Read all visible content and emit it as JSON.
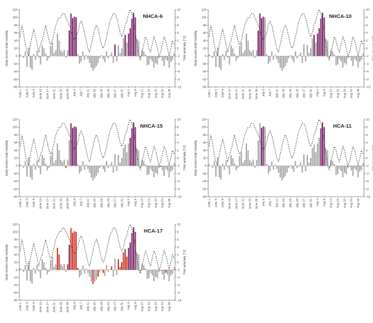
{
  "colors": {
    "grey": "#a9a9a9",
    "purple": "#7a2a6b",
    "red": "#d33a2c",
    "dash": "#444444",
    "axis": "#555555"
  },
  "y_left_label": "Daily excess total mortality",
  "y_right_label": "Tmin anomaly [°C]",
  "y_left_ticks": [
    "-80",
    "-60",
    "-40",
    "-20",
    "0",
    "20",
    "40",
    "60",
    "80",
    "100",
    "120"
  ],
  "y_right_ticks": [
    "-10",
    "-8",
    "-6",
    "-4",
    "-2",
    "0",
    "2",
    "4",
    "6",
    "8",
    "10"
  ],
  "x_tick_labels": [
    "June 1",
    "June 5",
    "June 9",
    "June 13",
    "June 17",
    "June 21",
    "June 25",
    "June 29",
    "July 3",
    "July 7",
    "July 11",
    "July 15",
    "July 19",
    "July 23",
    "July 27",
    "July 31",
    "Aug 4",
    "Aug 8",
    "Aug 12",
    "Aug 16",
    "Aug 20",
    "Aug 24",
    "Aug 28"
  ],
  "chart_data": {
    "type": "bar",
    "description_of_axes": {
      "x": "day (June 1 – Aug 31)",
      "y_left": "Daily excess total mortality",
      "y_right": "Tmin anomaly [°C]"
    },
    "ylim_left": [
      -80,
      120
    ],
    "ylim_right": [
      -10,
      10
    ],
    "days": 92,
    "mortality": [
      4,
      0,
      -5,
      12,
      -28,
      22,
      -30,
      -36,
      5,
      -10,
      14,
      -4,
      -22,
      28,
      20,
      6,
      -12,
      -5,
      26,
      35,
      8,
      15,
      58,
      40,
      15,
      10,
      16,
      -5,
      15,
      66,
      110,
      98,
      102,
      100,
      5,
      -20,
      -14,
      12,
      -10,
      3,
      -8,
      -18,
      -30,
      -38,
      -32,
      -26,
      -18,
      -6,
      2,
      -8,
      -16,
      12,
      -6,
      2,
      9,
      -18,
      30,
      -14,
      28,
      8,
      20,
      46,
      55,
      35,
      58,
      72,
      97,
      112,
      100,
      44,
      40,
      -5,
      16,
      12,
      4,
      -24,
      -22,
      -8,
      -14,
      -30,
      -18,
      -22,
      -6,
      -3,
      -12,
      -26,
      -8,
      -12,
      -30,
      -15,
      -10,
      7
    ],
    "tmin_anomaly": [
      3,
      6,
      4,
      1,
      -1,
      -2,
      1,
      3,
      5,
      3,
      1,
      -1,
      1,
      2,
      4,
      6,
      4,
      2,
      1,
      2,
      4,
      6,
      7,
      8,
      8,
      9,
      9,
      8,
      7,
      6,
      5,
      3,
      2,
      3,
      4,
      6,
      7,
      6,
      4,
      2,
      0,
      -1,
      1,
      3,
      5,
      6,
      5,
      3,
      1,
      0,
      1,
      3,
      5,
      7,
      8,
      9,
      9,
      8,
      6,
      4,
      3,
      4,
      6,
      7,
      9,
      10,
      9,
      7,
      4,
      1,
      -2,
      -3,
      -1,
      1,
      3,
      2,
      0,
      -1,
      1,
      3,
      2,
      0,
      -2,
      -1,
      1,
      3,
      2,
      0,
      -2,
      0,
      2,
      1
    ],
    "panels": [
      {
        "title": "NHCA-6",
        "scale": 1.0,
        "purple": [
          29,
          30,
          31,
          32,
          33,
          56,
          62,
          64,
          65,
          66,
          67,
          68
        ],
        "red": []
      },
      {
        "title": "NHCA-10",
        "scale": 1.0,
        "purple": [
          29,
          30,
          31,
          32,
          62,
          64,
          65,
          66,
          67,
          68
        ],
        "red": []
      },
      {
        "title": "NHCA-15",
        "scale": 1.0,
        "purple": [
          30,
          31,
          32,
          33,
          65,
          66,
          67,
          68
        ],
        "red": [
          27,
          83
        ]
      },
      {
        "title": "HCA-11",
        "scale": 1.0,
        "purple": [
          31,
          32,
          66,
          67,
          68
        ],
        "red": []
      },
      {
        "title": "HCA-17",
        "scale": 1.0,
        "purple": [
          29,
          64,
          65,
          66,
          67,
          68
        ],
        "red": [
          22,
          23,
          28,
          30,
          31,
          32,
          33,
          34,
          43,
          46,
          49,
          54,
          58,
          59,
          60,
          61,
          62,
          63,
          86
        ]
      }
    ]
  }
}
